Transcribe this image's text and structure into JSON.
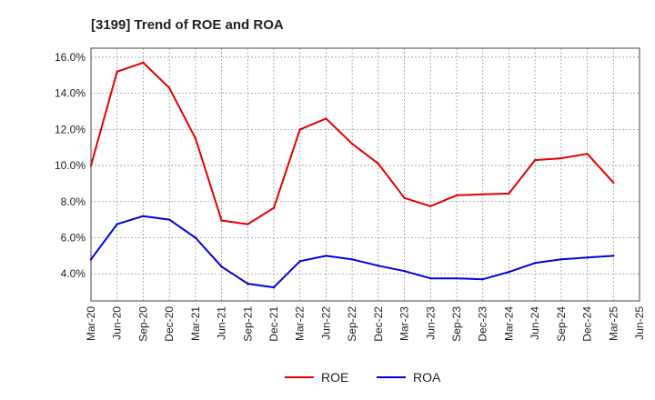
{
  "chart_data": {
    "type": "line",
    "title": "[3199]  Trend of ROE and ROA",
    "xlabel": "",
    "ylabel": "",
    "categories": [
      "Mar-20",
      "Jun-20",
      "Sep-20",
      "Dec-20",
      "Mar-21",
      "Jun-21",
      "Sep-21",
      "Dec-21",
      "Mar-22",
      "Jun-22",
      "Sep-22",
      "Dec-22",
      "Mar-23",
      "Jun-23",
      "Sep-23",
      "Dec-23",
      "Mar-24",
      "Jun-24",
      "Sep-24",
      "Dec-24",
      "Mar-25",
      "Jun-25"
    ],
    "y_ticks": [
      "4.0%",
      "6.0%",
      "8.0%",
      "10.0%",
      "12.0%",
      "14.0%",
      "16.0%"
    ],
    "ylim": [
      2.5,
      16.5
    ],
    "grid": true,
    "legend_position": "bottom-center",
    "series": [
      {
        "name": "ROE",
        "color": "#e00000",
        "values": [
          10.0,
          15.2,
          15.7,
          14.3,
          11.5,
          6.95,
          6.75,
          7.65,
          12.0,
          12.6,
          11.2,
          10.1,
          8.2,
          7.75,
          8.35,
          8.4,
          8.45,
          10.3,
          10.4,
          10.65,
          9.05,
          null
        ]
      },
      {
        "name": "ROA",
        "color": "#0000dd",
        "values": [
          4.8,
          6.75,
          7.2,
          7.0,
          6.0,
          4.4,
          3.45,
          3.25,
          4.7,
          5.0,
          4.8,
          4.45,
          4.15,
          3.75,
          3.75,
          3.7,
          4.1,
          4.6,
          4.8,
          4.9,
          5.0,
          null
        ]
      }
    ]
  }
}
